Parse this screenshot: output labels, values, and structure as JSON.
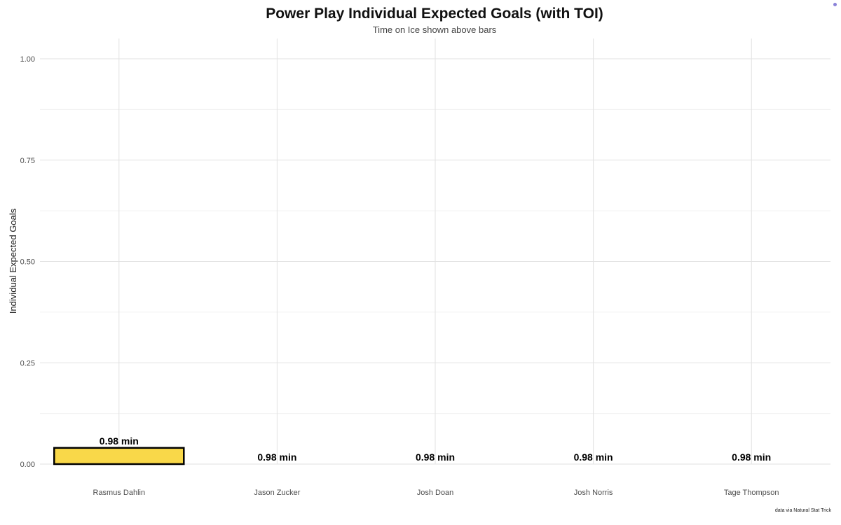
{
  "chart_data": {
    "type": "bar",
    "title": "Power Play Individual Expected Goals (with TOI)",
    "subtitle": "Time on Ice shown above bars",
    "xlabel": "",
    "ylabel": "Individual Expected Goals",
    "categories": [
      "Rasmus Dahlin",
      "Jason Zucker",
      "Josh Doan",
      "Josh Norris",
      "Tage Thompson"
    ],
    "values": [
      0.04,
      0.0,
      0.0,
      0.0,
      0.0
    ],
    "data_labels": [
      "0.98 min",
      "0.98 min",
      "0.98 min",
      "0.98 min",
      "0.98 min"
    ],
    "ylim": [
      0,
      1.0
    ],
    "yticks": [
      "0.00",
      "0.25",
      "0.50",
      "0.75",
      "1.00"
    ],
    "grid": true,
    "colors": {
      "highlight": "#F9D849",
      "default": "#FFFFFF",
      "outline": "#000000"
    },
    "highlight_index": 0,
    "caption": "data via Natural Stat Trick"
  }
}
